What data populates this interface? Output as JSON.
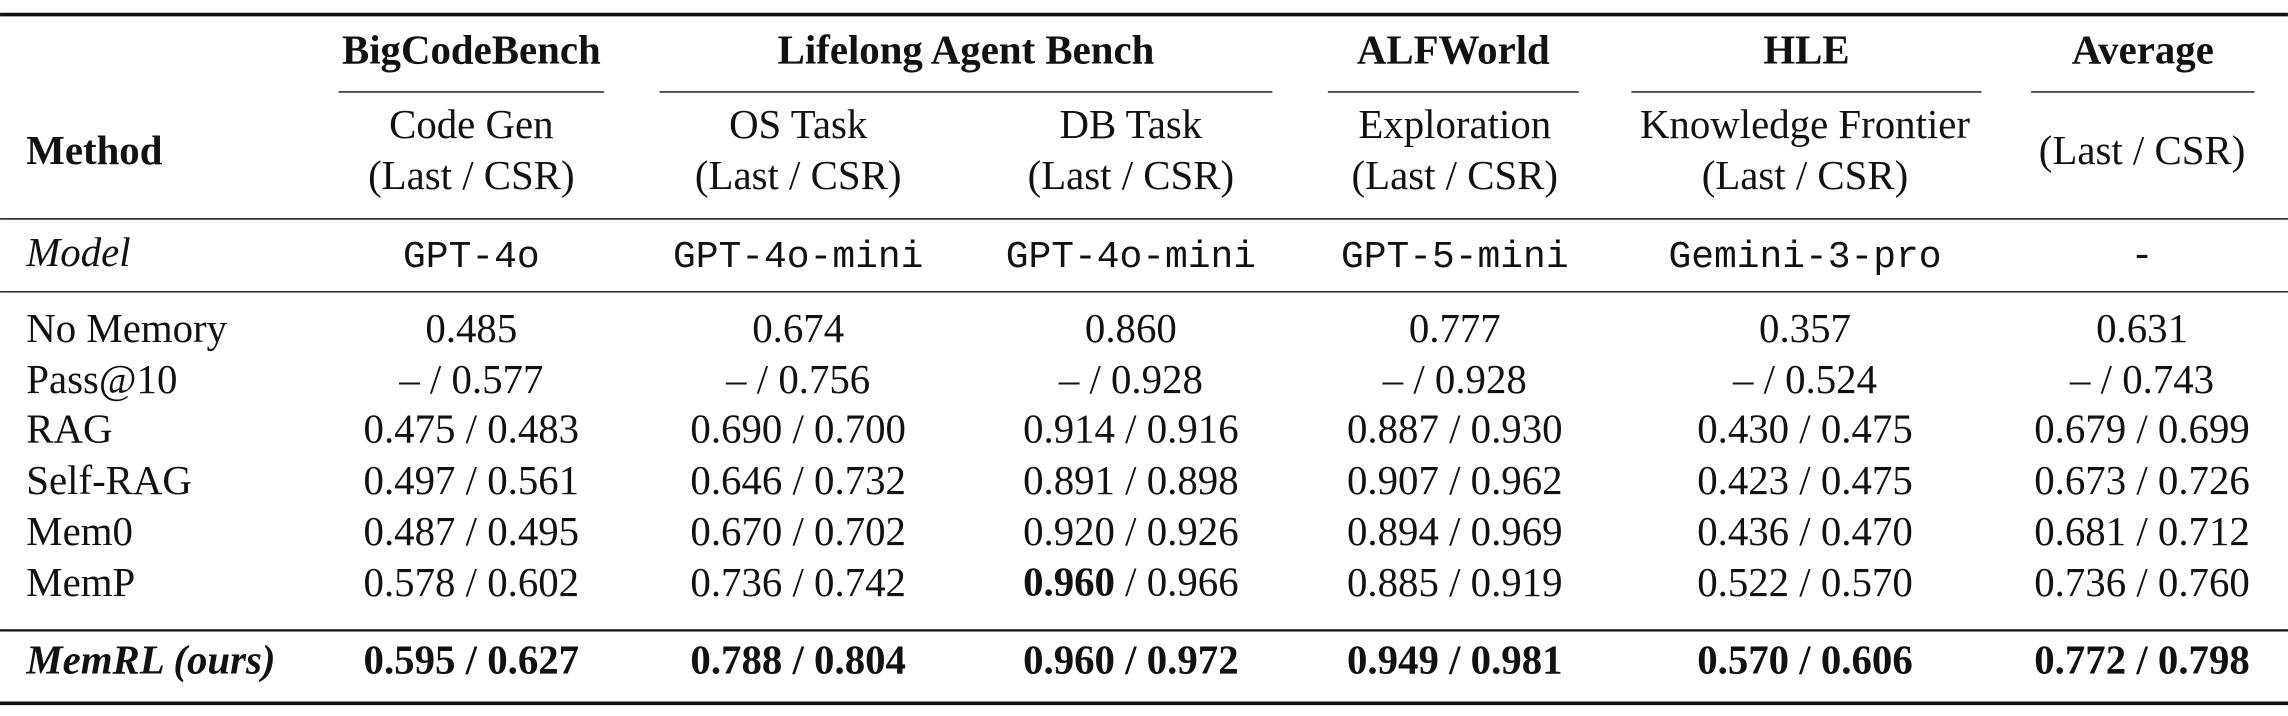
{
  "header": {
    "method": "Method",
    "groups": [
      {
        "title": "BigCodeBench",
        "columns": [
          {
            "task": "Code Gen",
            "metric": "(Last / CSR)"
          }
        ]
      },
      {
        "title": "Lifelong Agent Bench",
        "columns": [
          {
            "task": "OS Task",
            "metric": "(Last / CSR)"
          },
          {
            "task": "DB Task",
            "metric": "(Last / CSR)"
          }
        ]
      },
      {
        "title": "ALFWorld",
        "columns": [
          {
            "task": "Exploration",
            "metric": "(Last / CSR)"
          }
        ]
      },
      {
        "title": "HLE",
        "columns": [
          {
            "task": "Knowledge Frontier",
            "metric": "(Last / CSR)"
          }
        ]
      },
      {
        "title": "Average",
        "columns": [
          {
            "metric": "(Last / CSR)"
          }
        ]
      }
    ]
  },
  "model_row": {
    "label": "Model",
    "models": [
      "GPT-4o",
      "GPT-4o-mini",
      "GPT-4o-mini",
      "GPT-5-mini",
      "Gemini-3-pro",
      "-"
    ]
  },
  "rows": [
    {
      "method": "No Memory",
      "cells": [
        "0.485",
        "0.674",
        "0.860",
        "0.777",
        "0.357",
        "0.631"
      ]
    },
    {
      "method": "Pass@10",
      "cells": [
        "– / 0.577",
        "– / 0.756",
        "– / 0.928",
        "– / 0.928",
        "– / 0.524",
        "– / 0.743"
      ]
    },
    {
      "method": "RAG",
      "cells": [
        "0.475 / 0.483",
        "0.690 / 0.700",
        "0.914 / 0.916",
        "0.887 / 0.930",
        "0.430 / 0.475",
        "0.679 / 0.699"
      ]
    },
    {
      "method": "Self-RAG",
      "cells": [
        "0.497 / 0.561",
        "0.646 / 0.732",
        "0.891 / 0.898",
        "0.907 / 0.962",
        "0.423 / 0.475",
        "0.673 / 0.726"
      ]
    },
    {
      "method": "Mem0",
      "cells": [
        "0.487 / 0.495",
        "0.670 / 0.702",
        "0.920 / 0.926",
        "0.894 / 0.969",
        "0.436 / 0.470",
        "0.681 / 0.712"
      ]
    },
    {
      "method": "MemP",
      "cells": [
        "0.578 / 0.602",
        "0.736 / 0.742",
        {
          "bold": "0.960",
          "text": " / 0.966"
        },
        "0.885 / 0.919",
        "0.522 / 0.570",
        "0.736 / 0.760"
      ]
    },
    {
      "method": "MemRL (ours)",
      "style": "bold",
      "cells": [
        "0.595 / 0.627",
        "0.788 / 0.804",
        "0.960 / 0.972",
        "0.949 / 0.981",
        "0.570 / 0.606",
        "0.772 / 0.798"
      ]
    }
  ]
}
